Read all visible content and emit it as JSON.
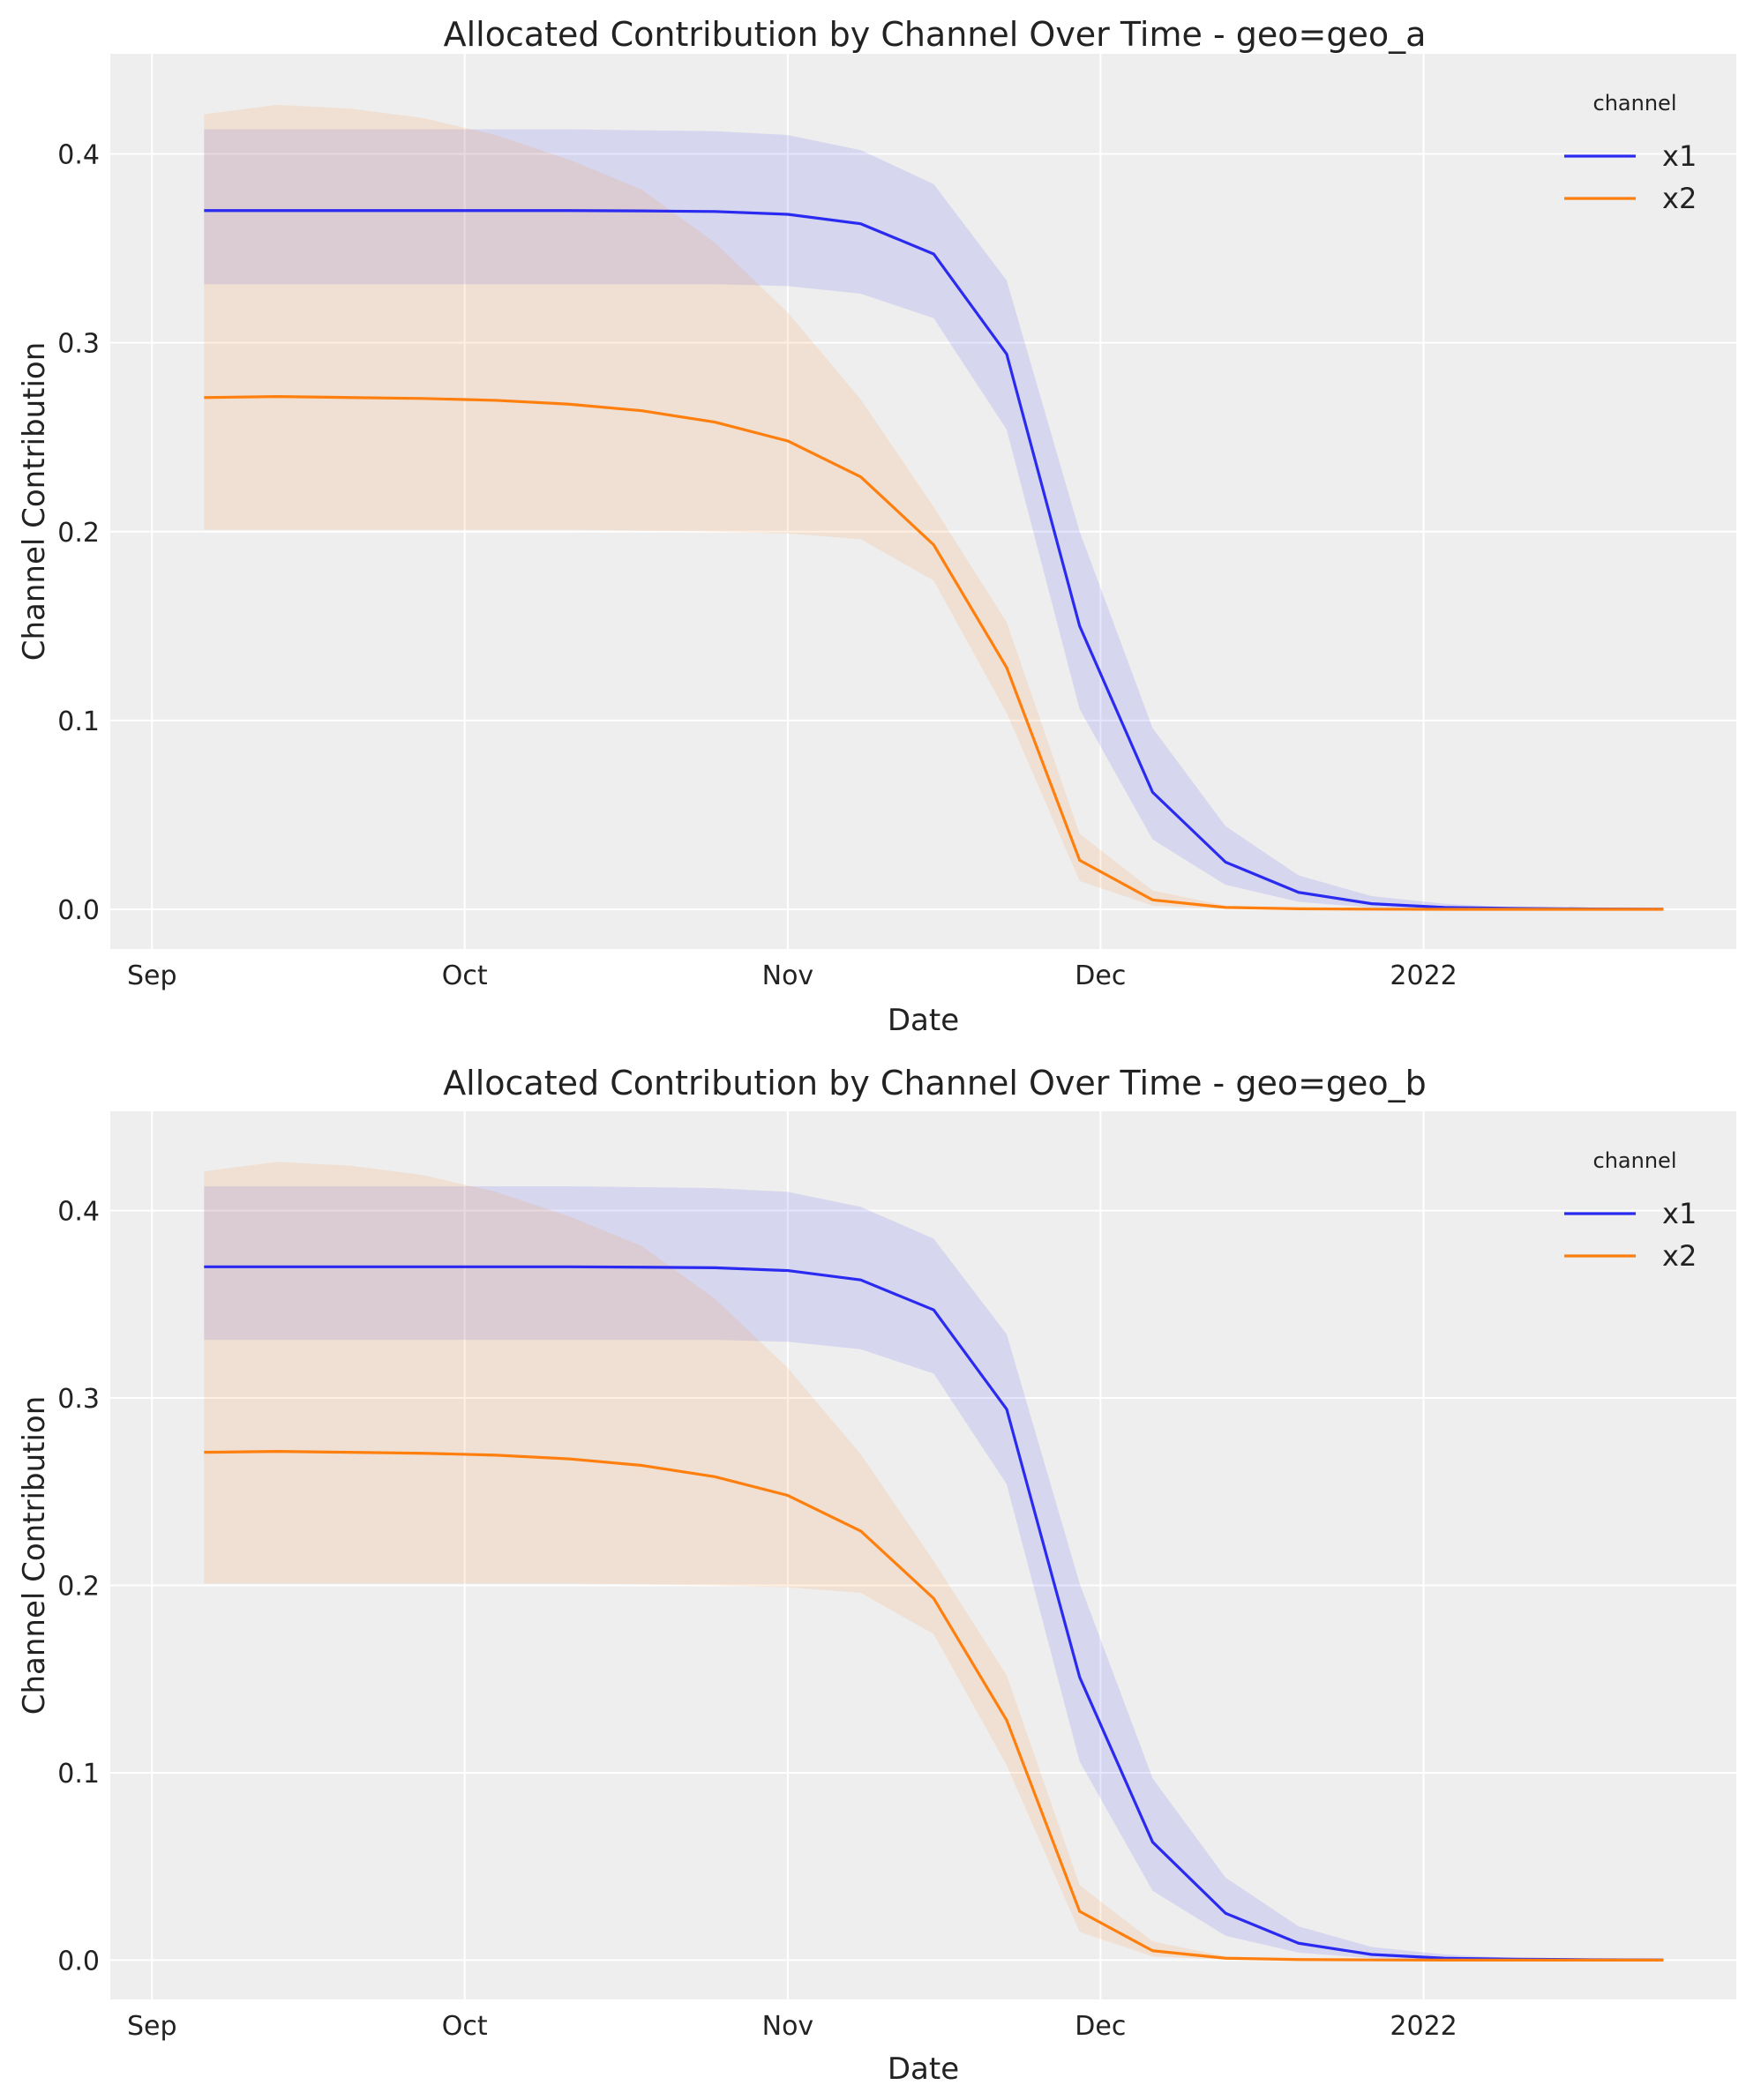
{
  "chart_data": [
    {
      "type": "line",
      "title": "Allocated Contribution by Channel Over Time - geo=geo_a",
      "xlabel": "Date",
      "ylabel": "Channel Contribution",
      "xlim": [
        "2021-08-28",
        "2022-01-31"
      ],
      "ylim": [
        -0.021,
        0.453
      ],
      "grid": true,
      "background": "#eeeeee",
      "x_ticks": [
        {
          "date": "2021-09-01",
          "label": "Sep"
        },
        {
          "date": "2021-10-01",
          "label": "Oct"
        },
        {
          "date": "2021-11-01",
          "label": "Nov"
        },
        {
          "date": "2021-12-01",
          "label": "Dec"
        },
        {
          "date": "2022-01-01",
          "label": "2022"
        }
      ],
      "y_ticks": [
        {
          "value": 0.0,
          "label": "0.0"
        },
        {
          "value": 0.1,
          "label": "0.1"
        },
        {
          "value": 0.2,
          "label": "0.2"
        },
        {
          "value": 0.3,
          "label": "0.3"
        },
        {
          "value": 0.4,
          "label": "0.4"
        }
      ],
      "legend": {
        "title": "channel",
        "placement": "top-right"
      },
      "x": [
        "2021-09-06",
        "2021-09-13",
        "2021-09-20",
        "2021-09-27",
        "2021-10-04",
        "2021-10-11",
        "2021-10-18",
        "2021-10-25",
        "2021-11-01",
        "2021-11-08",
        "2021-11-15",
        "2021-11-22",
        "2021-11-29",
        "2021-12-06",
        "2021-12-13",
        "2021-12-20",
        "2021-12-27",
        "2022-01-03",
        "2022-01-10",
        "2022-01-17",
        "2022-01-24"
      ],
      "series": [
        {
          "name": "x1",
          "color": "#2a2af0",
          "values": [
            0.37,
            0.37,
            0.37,
            0.37,
            0.37,
            0.37,
            0.3698,
            0.3695,
            0.368,
            0.363,
            0.347,
            0.294,
            0.15,
            0.062,
            0.025,
            0.009,
            0.003,
            0.001,
            0.0005,
            0.0002,
            0.0001
          ],
          "lower": [
            0.331,
            0.331,
            0.331,
            0.331,
            0.331,
            0.331,
            0.331,
            0.331,
            0.33,
            0.326,
            0.313,
            0.254,
            0.106,
            0.037,
            0.013,
            0.004,
            0.001,
            0.0003,
            0.0001,
            0,
            0
          ],
          "upper": [
            0.413,
            0.413,
            0.413,
            0.413,
            0.413,
            0.413,
            0.4125,
            0.412,
            0.41,
            0.402,
            0.384,
            0.333,
            0.2,
            0.096,
            0.044,
            0.018,
            0.007,
            0.003,
            0.001,
            0.0005,
            0.0002
          ]
        },
        {
          "name": "x2",
          "color": "#ff7f0e",
          "values": [
            0.271,
            0.2715,
            0.271,
            0.2705,
            0.2695,
            0.2675,
            0.264,
            0.258,
            0.248,
            0.229,
            0.193,
            0.128,
            0.026,
            0.005,
            0.001,
            0.0003,
            0.0001,
            0,
            0,
            0,
            0
          ],
          "lower": [
            0.201,
            0.201,
            0.201,
            0.201,
            0.201,
            0.201,
            0.2005,
            0.2,
            0.199,
            0.196,
            0.174,
            0.104,
            0.015,
            0.002,
            0.0003,
            0,
            0,
            0,
            0,
            0,
            0
          ],
          "upper": [
            0.421,
            0.426,
            0.424,
            0.419,
            0.41,
            0.397,
            0.381,
            0.353,
            0.316,
            0.27,
            0.213,
            0.152,
            0.04,
            0.01,
            0.002,
            0.0005,
            0.0001,
            0,
            0,
            0,
            0
          ]
        }
      ]
    },
    {
      "type": "line",
      "title": "Allocated Contribution by Channel Over Time - geo=geo_b",
      "xlabel": "Date",
      "ylabel": "Channel Contribution",
      "xlim": [
        "2021-08-28",
        "2022-01-31"
      ],
      "ylim": [
        -0.021,
        0.453
      ],
      "grid": true,
      "background": "#eeeeee",
      "x_ticks": [
        {
          "date": "2021-09-01",
          "label": "Sep"
        },
        {
          "date": "2021-10-01",
          "label": "Oct"
        },
        {
          "date": "2021-11-01",
          "label": "Nov"
        },
        {
          "date": "2021-12-01",
          "label": "Dec"
        },
        {
          "date": "2022-01-01",
          "label": "2022"
        }
      ],
      "y_ticks": [
        {
          "value": 0.0,
          "label": "0.0"
        },
        {
          "value": 0.1,
          "label": "0.1"
        },
        {
          "value": 0.2,
          "label": "0.2"
        },
        {
          "value": 0.3,
          "label": "0.3"
        },
        {
          "value": 0.4,
          "label": "0.4"
        }
      ],
      "legend": {
        "title": "channel",
        "placement": "top-right"
      },
      "x": [
        "2021-09-06",
        "2021-09-13",
        "2021-09-20",
        "2021-09-27",
        "2021-10-04",
        "2021-10-11",
        "2021-10-18",
        "2021-10-25",
        "2021-11-01",
        "2021-11-08",
        "2021-11-15",
        "2021-11-22",
        "2021-11-29",
        "2021-12-06",
        "2021-12-13",
        "2021-12-20",
        "2021-12-27",
        "2022-01-03",
        "2022-01-10",
        "2022-01-17",
        "2022-01-24"
      ],
      "series": [
        {
          "name": "x1",
          "color": "#2a2af0",
          "values": [
            0.37,
            0.37,
            0.37,
            0.37,
            0.37,
            0.37,
            0.3698,
            0.3695,
            0.368,
            0.363,
            0.347,
            0.294,
            0.151,
            0.063,
            0.025,
            0.009,
            0.003,
            0.001,
            0.0005,
            0.0002,
            0.0001
          ],
          "lower": [
            0.331,
            0.331,
            0.331,
            0.331,
            0.331,
            0.331,
            0.331,
            0.331,
            0.33,
            0.326,
            0.313,
            0.254,
            0.106,
            0.037,
            0.013,
            0.004,
            0.001,
            0.0003,
            0.0001,
            0,
            0
          ],
          "upper": [
            0.413,
            0.413,
            0.413,
            0.413,
            0.413,
            0.413,
            0.4125,
            0.412,
            0.41,
            0.402,
            0.385,
            0.334,
            0.201,
            0.097,
            0.044,
            0.018,
            0.007,
            0.003,
            0.001,
            0.0005,
            0.0002
          ]
        },
        {
          "name": "x2",
          "color": "#ff7f0e",
          "values": [
            0.271,
            0.2715,
            0.271,
            0.2705,
            0.2695,
            0.2675,
            0.264,
            0.258,
            0.248,
            0.229,
            0.193,
            0.128,
            0.026,
            0.005,
            0.001,
            0.0003,
            0.0001,
            0,
            0,
            0,
            0
          ],
          "lower": [
            0.201,
            0.201,
            0.201,
            0.201,
            0.201,
            0.201,
            0.2005,
            0.2,
            0.199,
            0.196,
            0.174,
            0.104,
            0.015,
            0.002,
            0.0003,
            0,
            0,
            0,
            0,
            0,
            0
          ],
          "upper": [
            0.421,
            0.426,
            0.424,
            0.419,
            0.41,
            0.397,
            0.381,
            0.353,
            0.316,
            0.27,
            0.213,
            0.152,
            0.04,
            0.01,
            0.002,
            0.0005,
            0.0001,
            0,
            0,
            0,
            0
          ]
        }
      ]
    }
  ]
}
